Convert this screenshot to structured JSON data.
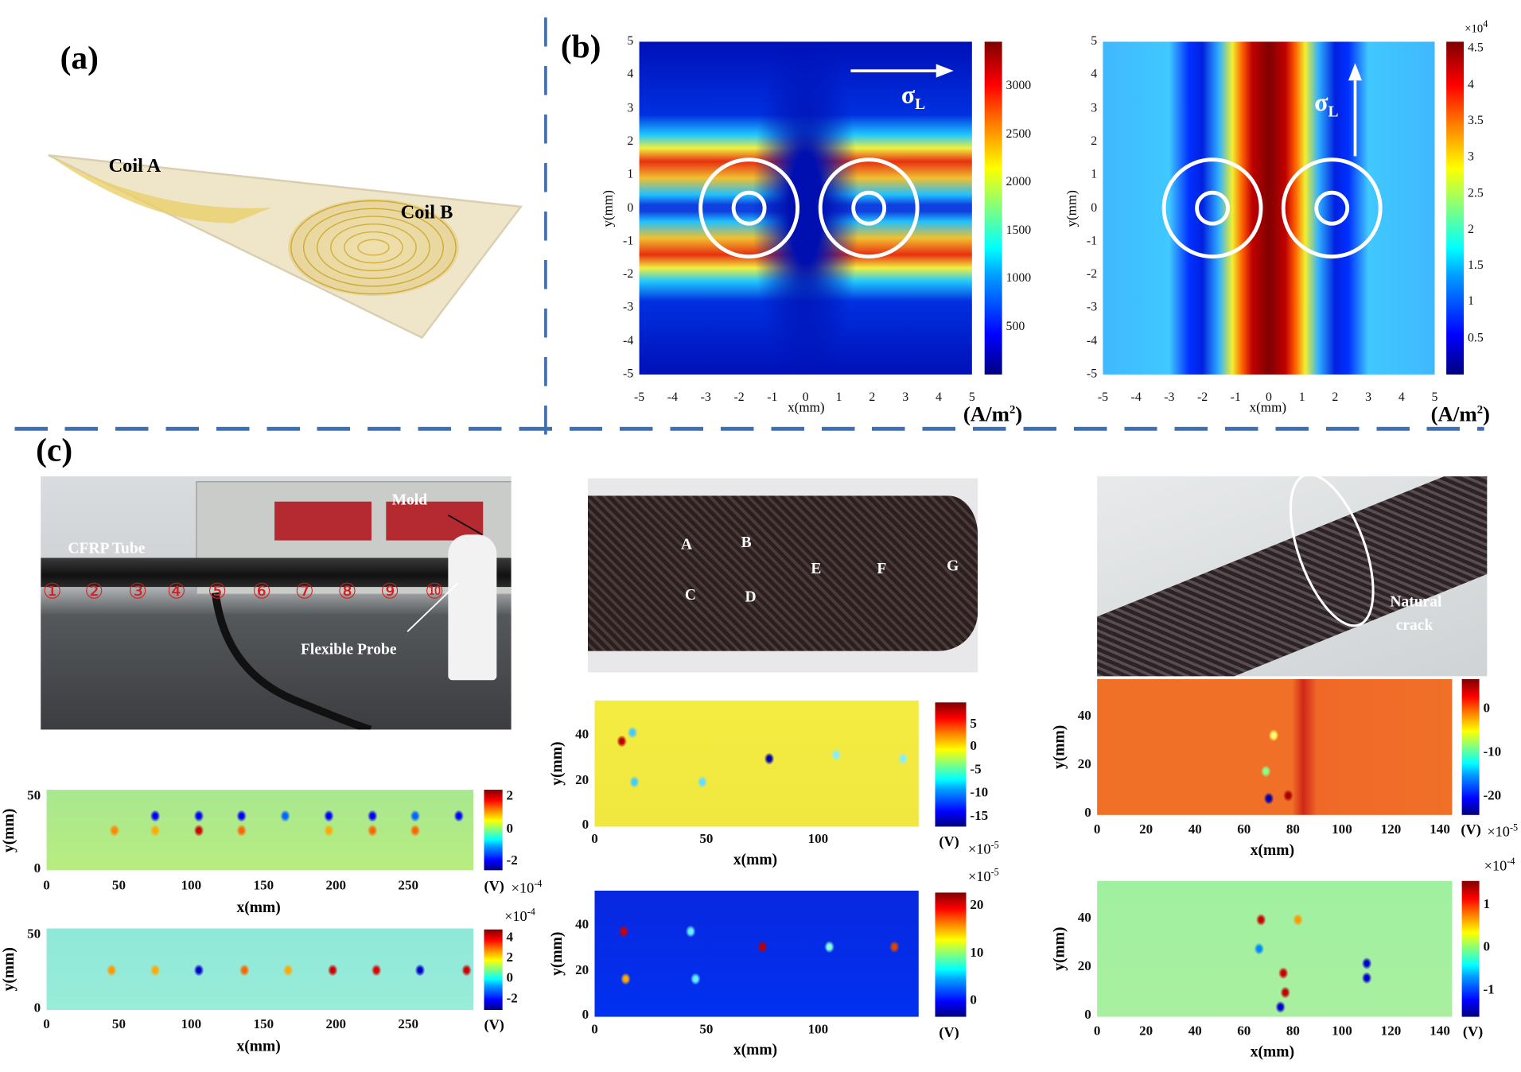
{
  "panels": {
    "a": {
      "label": "(a)",
      "coil_a": "Coil A",
      "coil_b": "Coil B"
    },
    "b": {
      "label": "(b)",
      "sigma_symbol": "σ",
      "sigma_sub": "L"
    },
    "c": {
      "label": "(c)",
      "photo1": {
        "cfrp_tube": "CFRP Tube",
        "mold": "Mold",
        "flexible_probe": "Flexible Probe",
        "markers": [
          "①",
          "②",
          "③",
          "④",
          "⑤",
          "⑥",
          "⑦",
          "⑧",
          "⑨",
          "⑩"
        ]
      },
      "photo2": {
        "points": [
          "A",
          "B",
          "C",
          "D",
          "E",
          "F",
          "G"
        ]
      },
      "photo3": {
        "natural": "Natural",
        "crack": "crack"
      }
    }
  },
  "colors": {
    "divider": "#3d6fb5",
    "marker_red": "#d81e1e"
  },
  "chart_data": [
    {
      "id": "b1",
      "type": "heatmap",
      "xlabel": "x(mm)",
      "ylabel": "y(mm)",
      "xlim": [
        -5,
        5
      ],
      "ylim": [
        -5,
        5
      ],
      "xticks": [
        "-5",
        "-4",
        "-3",
        "-2",
        "-1",
        "0",
        "1",
        "2",
        "3",
        "4",
        "5"
      ],
      "yticks": [
        "5",
        "4",
        "3",
        "2",
        "1",
        "0",
        "-1",
        "-2",
        "-3",
        "-4",
        "-5"
      ],
      "colorbar": {
        "range": [
          0,
          3470
        ],
        "ticks": [
          "3000",
          "2500",
          "2000",
          "1500",
          "1000",
          "500"
        ],
        "unit": "(A/m",
        "unit_sup": "2",
        "unit_close": ")",
        "exponent": ""
      }
    },
    {
      "id": "b2",
      "type": "heatmap",
      "xlabel": "x(mm)",
      "ylabel": "y(mm)",
      "xlim": [
        -5,
        5
      ],
      "ylim": [
        -5,
        5
      ],
      "xticks": [
        "-5",
        "-4",
        "-3",
        "-2",
        "-1",
        "0",
        "1",
        "2",
        "3",
        "4",
        "5"
      ],
      "yticks": [
        "5",
        "4",
        "3",
        "2",
        "1",
        "0",
        "-1",
        "-2",
        "-3",
        "-4",
        "-5"
      ],
      "colorbar": {
        "range": [
          0,
          4.6
        ],
        "ticks": [
          "4.5",
          "4",
          "3.5",
          "3",
          "2.5",
          "2",
          "1.5",
          "1",
          "0.5"
        ],
        "unit": "(A/m",
        "unit_sup": "2",
        "unit_close": ")",
        "exponent": "×10",
        "exponent_sup": "4"
      }
    },
    {
      "id": "c1",
      "type": "heatmap",
      "xlabel": "x(mm)",
      "ylabel": "y(mm)",
      "xlim": [
        0,
        295
      ],
      "ylim": [
        0,
        55
      ],
      "xticks": [
        "0",
        "50",
        "100",
        "150",
        "200",
        "250"
      ],
      "yticks": [
        "50",
        "0"
      ],
      "colorbar": {
        "range": [
          -2.5,
          2.5
        ],
        "ticks": [
          "2",
          "0",
          "-2"
        ],
        "unit": "(V)",
        "exponent": "×10",
        "exponent_sup": "-4"
      }
    },
    {
      "id": "c2",
      "type": "heatmap",
      "xlabel": "x(mm)",
      "ylabel": "y(mm)",
      "xlim": [
        0,
        295
      ],
      "ylim": [
        0,
        55
      ],
      "xticks": [
        "0",
        "50",
        "100",
        "150",
        "200",
        "250"
      ],
      "yticks": [
        "50",
        "0"
      ],
      "colorbar": {
        "range": [
          -3,
          5
        ],
        "ticks": [
          "4",
          "2",
          "0",
          "-2"
        ],
        "unit": "(V)",
        "exponent": "×10",
        "exponent_sup": "-4"
      }
    },
    {
      "id": "c3",
      "type": "heatmap",
      "xlabel": "x(mm)",
      "ylabel": "y(mm)",
      "xlim": [
        0,
        145
      ],
      "ylim": [
        0,
        56
      ],
      "xticks": [
        "0",
        "50",
        "100"
      ],
      "yticks": [
        "40",
        "20",
        "0"
      ],
      "colorbar": {
        "range": [
          -17,
          10
        ],
        "ticks": [
          "5",
          "0",
          "-5",
          "-10",
          "-15"
        ],
        "unit": "(V)",
        "exponent": "×10",
        "exponent_sup": "-5"
      }
    },
    {
      "id": "c4",
      "type": "heatmap",
      "xlabel": "x(mm)",
      "ylabel": "y(mm)",
      "xlim": [
        0,
        145
      ],
      "ylim": [
        0,
        56
      ],
      "xticks": [
        "0",
        "50",
        "100"
      ],
      "yticks": [
        "40",
        "20",
        "0"
      ],
      "colorbar": {
        "range": [
          -3,
          23
        ],
        "ticks": [
          "20",
          "10",
          "0"
        ],
        "unit": "(V)",
        "exponent": "×10",
        "exponent_sup": "-5"
      }
    },
    {
      "id": "c5",
      "type": "heatmap",
      "xlabel": "x(mm)",
      "ylabel": "y(mm)",
      "xlim": [
        0,
        145
      ],
      "ylim": [
        0,
        56
      ],
      "xticks": [
        "0",
        "20",
        "40",
        "60",
        "80",
        "100",
        "120",
        "140"
      ],
      "yticks": [
        "40",
        "20",
        "0"
      ],
      "colorbar": {
        "range": [
          -24,
          7
        ],
        "ticks": [
          "0",
          "-10",
          "-20"
        ],
        "unit": "(V)",
        "exponent": "×10",
        "exponent_sup": "-5"
      }
    },
    {
      "id": "c6",
      "type": "heatmap",
      "xlabel": "x(mm)",
      "ylabel": "y(mm)",
      "xlim": [
        0,
        145
      ],
      "ylim": [
        0,
        56
      ],
      "xticks": [
        "0",
        "20",
        "40",
        "60",
        "80",
        "100",
        "120",
        "140"
      ],
      "yticks": [
        "40",
        "20",
        "0"
      ],
      "colorbar": {
        "range": [
          -1.6,
          1.6
        ],
        "ticks": [
          "1",
          "0",
          "-1"
        ],
        "unit": "(V)",
        "exponent": "×10",
        "exponent_sup": "-4"
      }
    }
  ]
}
